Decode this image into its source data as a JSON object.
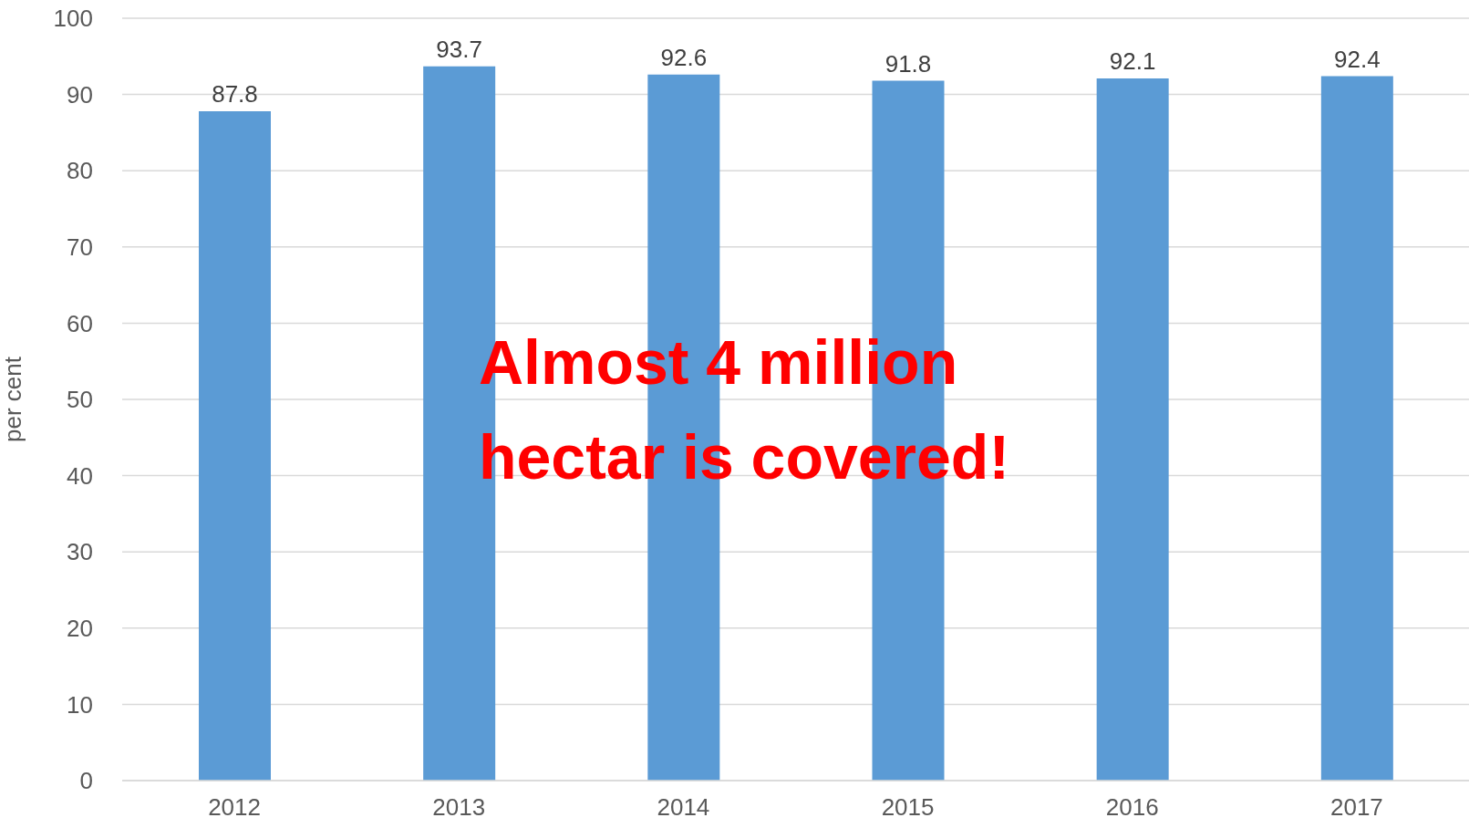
{
  "chart_data": {
    "type": "bar",
    "categories": [
      "2012",
      "2013",
      "2014",
      "2015",
      "2016",
      "2017"
    ],
    "values": [
      87.8,
      93.7,
      92.6,
      91.8,
      92.1,
      92.4
    ],
    "color": "#5b9bd5",
    "ylabel": "per cent",
    "ylim": [
      0,
      100
    ],
    "yticks": [
      0,
      10,
      20,
      30,
      40,
      50,
      60,
      70,
      80,
      90,
      100
    ],
    "grid": "y",
    "data_labels": true,
    "annotations": [
      "Almost 4 million hectar is covered!"
    ]
  }
}
